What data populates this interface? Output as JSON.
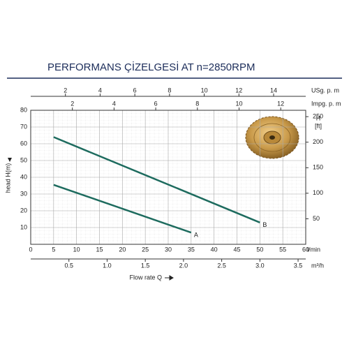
{
  "chart_data": {
    "type": "line",
    "title": "PERFORMANS ÇİZELGESİ  AT n=2850RPM",
    "xlabel": "Flow rate Q",
    "xunit": "l/min",
    "xlim": [
      0,
      60
    ],
    "xticks": [
      0,
      5,
      10,
      15,
      20,
      25,
      30,
      35,
      40,
      45,
      50,
      55,
      60
    ],
    "ylabel": "head H(m)",
    "ylim": [
      0,
      80
    ],
    "yticks": [
      10,
      20,
      30,
      40,
      50,
      60,
      70,
      80
    ],
    "y2label": "H",
    "y2unit": "[ft]",
    "y2lim": [
      0,
      262.47
    ],
    "y2ticks": [
      50,
      100,
      150,
      200,
      250
    ],
    "x_axes": [
      {
        "label": "USg. p. m",
        "xlim": [
          0,
          15.85
        ],
        "xticks": [
          2,
          4,
          6,
          8,
          10,
          12,
          14
        ]
      },
      {
        "label": "Impg. p. m",
        "xlim": [
          0,
          13.2
        ],
        "xticks": [
          2,
          4,
          6,
          8,
          10,
          12
        ]
      },
      {
        "label": "m³/h",
        "xlim": [
          0,
          3.6
        ],
        "xticks": [
          0.5,
          {
            "value": 1,
            "label": "1.0"
          },
          1.5,
          {
            "value": 2,
            "label": "2.0"
          },
          2.5,
          {
            "value": 3,
            "label": "3.0"
          },
          3.5
        ]
      }
    ],
    "grid": true,
    "series": [
      {
        "name": "A",
        "color": "#1d6b5e",
        "x": [
          5,
          35
        ],
        "values": [
          35.5,
          7
        ]
      },
      {
        "name": "B",
        "color": "#1d6b5e",
        "x": [
          5,
          50
        ],
        "values": [
          64,
          13
        ]
      }
    ]
  }
}
